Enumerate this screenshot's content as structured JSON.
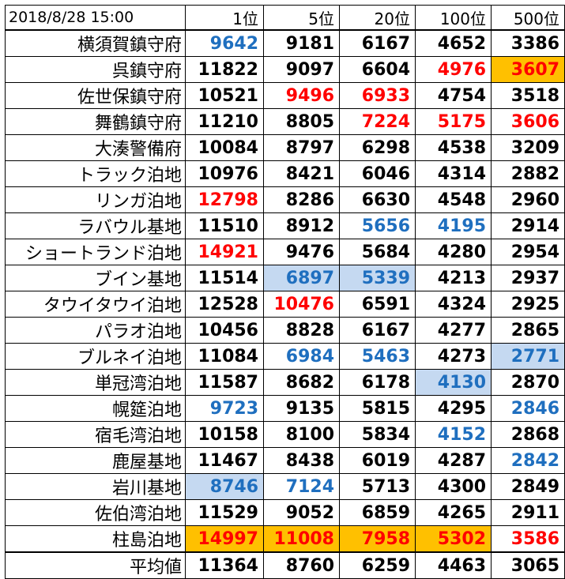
{
  "header": [
    "2018/8/28 15:00",
    "1位",
    "5位",
    "20位",
    "100位",
    "500位"
  ],
  "rows": [
    {
      "name": "横須賀鎮守府",
      "cells": [
        {
          "v": "9642",
          "color": "blue"
        },
        {
          "v": "9181"
        },
        {
          "v": "6167"
        },
        {
          "v": "4652"
        },
        {
          "v": "3386"
        }
      ]
    },
    {
      "name": "呉鎮守府",
      "cells": [
        {
          "v": "11822"
        },
        {
          "v": "9097"
        },
        {
          "v": "6604"
        },
        {
          "v": "4976",
          "color": "red"
        },
        {
          "v": "3607",
          "color": "red",
          "bg": "orange"
        }
      ]
    },
    {
      "name": "佐世保鎮守府",
      "cells": [
        {
          "v": "10521"
        },
        {
          "v": "9496",
          "color": "red"
        },
        {
          "v": "6933",
          "color": "red"
        },
        {
          "v": "4754"
        },
        {
          "v": "3518"
        }
      ]
    },
    {
      "name": "舞鶴鎮守府",
      "cells": [
        {
          "v": "11210"
        },
        {
          "v": "8805"
        },
        {
          "v": "7224",
          "color": "red"
        },
        {
          "v": "5175",
          "color": "red"
        },
        {
          "v": "3606",
          "color": "red"
        }
      ]
    },
    {
      "name": "大湊警備府",
      "cells": [
        {
          "v": "10084"
        },
        {
          "v": "8797"
        },
        {
          "v": "6298"
        },
        {
          "v": "4538"
        },
        {
          "v": "3209"
        }
      ]
    },
    {
      "name": "トラック泊地",
      "cells": [
        {
          "v": "10976"
        },
        {
          "v": "8421"
        },
        {
          "v": "6046"
        },
        {
          "v": "4314"
        },
        {
          "v": "2882"
        }
      ]
    },
    {
      "name": "リンガ泊地",
      "cells": [
        {
          "v": "12798",
          "color": "red"
        },
        {
          "v": "8286"
        },
        {
          "v": "6630"
        },
        {
          "v": "4548"
        },
        {
          "v": "2960"
        }
      ]
    },
    {
      "name": "ラバウル基地",
      "cells": [
        {
          "v": "11510"
        },
        {
          "v": "8912"
        },
        {
          "v": "5656",
          "color": "blue"
        },
        {
          "v": "4195",
          "color": "blue"
        },
        {
          "v": "2914"
        }
      ]
    },
    {
      "name": "ショートランド泊地",
      "cells": [
        {
          "v": "14921",
          "color": "red"
        },
        {
          "v": "9476"
        },
        {
          "v": "5684"
        },
        {
          "v": "4280"
        },
        {
          "v": "2954"
        }
      ]
    },
    {
      "name": "ブイン基地",
      "cells": [
        {
          "v": "11514"
        },
        {
          "v": "6897",
          "color": "blue",
          "bg": "blue"
        },
        {
          "v": "5339",
          "color": "blue",
          "bg": "blue"
        },
        {
          "v": "4213"
        },
        {
          "v": "2937"
        }
      ]
    },
    {
      "name": "タウイタウイ泊地",
      "cells": [
        {
          "v": "12528"
        },
        {
          "v": "10476",
          "color": "red"
        },
        {
          "v": "6591"
        },
        {
          "v": "4324"
        },
        {
          "v": "2925"
        }
      ]
    },
    {
      "name": "パラオ泊地",
      "cells": [
        {
          "v": "10456"
        },
        {
          "v": "8828"
        },
        {
          "v": "6167"
        },
        {
          "v": "4277"
        },
        {
          "v": "2865"
        }
      ]
    },
    {
      "name": "ブルネイ泊地",
      "cells": [
        {
          "v": "11084"
        },
        {
          "v": "6984",
          "color": "blue"
        },
        {
          "v": "5463",
          "color": "blue"
        },
        {
          "v": "4273"
        },
        {
          "v": "2771",
          "color": "blue",
          "bg": "blue"
        }
      ]
    },
    {
      "name": "単冠湾泊地",
      "cells": [
        {
          "v": "11587"
        },
        {
          "v": "8682"
        },
        {
          "v": "6178"
        },
        {
          "v": "4130",
          "color": "blue",
          "bg": "blue"
        },
        {
          "v": "2870"
        }
      ]
    },
    {
      "name": "幌筵泊地",
      "cells": [
        {
          "v": "9723",
          "color": "blue"
        },
        {
          "v": "9135"
        },
        {
          "v": "5815"
        },
        {
          "v": "4295"
        },
        {
          "v": "2846",
          "color": "blue"
        }
      ]
    },
    {
      "name": "宿毛湾泊地",
      "cells": [
        {
          "v": "10158"
        },
        {
          "v": "8100"
        },
        {
          "v": "5834"
        },
        {
          "v": "4152",
          "color": "blue"
        },
        {
          "v": "2868"
        }
      ]
    },
    {
      "name": "鹿屋基地",
      "cells": [
        {
          "v": "11467"
        },
        {
          "v": "8438"
        },
        {
          "v": "6019"
        },
        {
          "v": "4287"
        },
        {
          "v": "2842",
          "color": "blue"
        }
      ]
    },
    {
      "name": "岩川基地",
      "cells": [
        {
          "v": "8746",
          "color": "blue",
          "bg": "blue"
        },
        {
          "v": "7124",
          "color": "blue"
        },
        {
          "v": "5713"
        },
        {
          "v": "4300"
        },
        {
          "v": "2849"
        }
      ]
    },
    {
      "name": "佐伯湾泊地",
      "cells": [
        {
          "v": "11529"
        },
        {
          "v": "9052"
        },
        {
          "v": "6859"
        },
        {
          "v": "4265"
        },
        {
          "v": "2911"
        }
      ]
    },
    {
      "name": "柱島泊地",
      "cells": [
        {
          "v": "14997",
          "color": "red",
          "bg": "orange"
        },
        {
          "v": "11008",
          "color": "red",
          "bg": "orange"
        },
        {
          "v": "7958",
          "color": "red",
          "bg": "orange"
        },
        {
          "v": "5302",
          "color": "red",
          "bg": "orange"
        },
        {
          "v": "3586",
          "color": "red"
        }
      ]
    }
  ],
  "average": {
    "name": "平均値",
    "cells": [
      "11364",
      "8760",
      "6259",
      "4463",
      "3065"
    ]
  },
  "colors": {
    "red": "#ff0000",
    "blue": "#1f6fbf",
    "bg_blue": "#c5d9f1",
    "bg_orange": "#ffc000"
  }
}
